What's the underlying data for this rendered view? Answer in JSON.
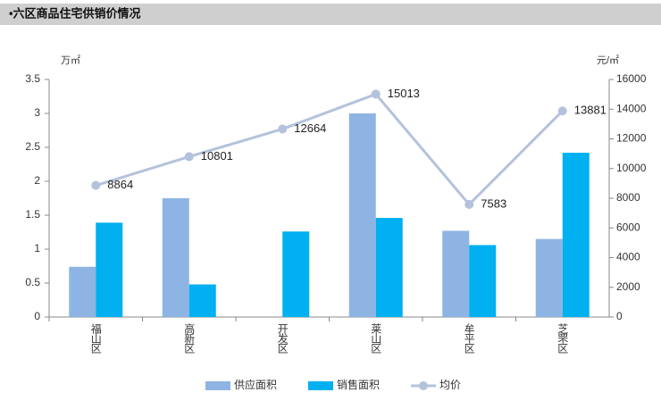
{
  "header": {
    "title": "•六区商品住宅供销价情况"
  },
  "chart_data": {
    "type": "bar",
    "y_unit": "万㎡",
    "y2_unit": "元/㎡",
    "categories": [
      "福山区",
      "高新区",
      "开发区",
      "莱山区",
      "牟平区",
      "芝罘区"
    ],
    "series": [
      {
        "name": "供应面积",
        "color": "#8eb4e3",
        "values": [
          0.74,
          1.75,
          null,
          3.0,
          1.27,
          1.15
        ]
      },
      {
        "name": "销售面积",
        "color": "#00b0f0",
        "values": [
          1.39,
          0.48,
          1.26,
          1.46,
          1.06,
          2.42
        ]
      },
      {
        "name": "均价",
        "color": "#b4c2dc",
        "type": "line",
        "axis": "y2",
        "values": [
          8864,
          10801,
          12664,
          15013,
          7583,
          13881
        ]
      }
    ],
    "ylim": [
      0,
      3.5
    ],
    "yticks": [
      0,
      0.5,
      1,
      1.5,
      2,
      2.5,
      3,
      3.5
    ],
    "y2lim": [
      0,
      16000
    ],
    "y2ticks": [
      0,
      2000,
      4000,
      6000,
      8000,
      10000,
      12000,
      14000,
      16000
    ],
    "grid": false
  }
}
